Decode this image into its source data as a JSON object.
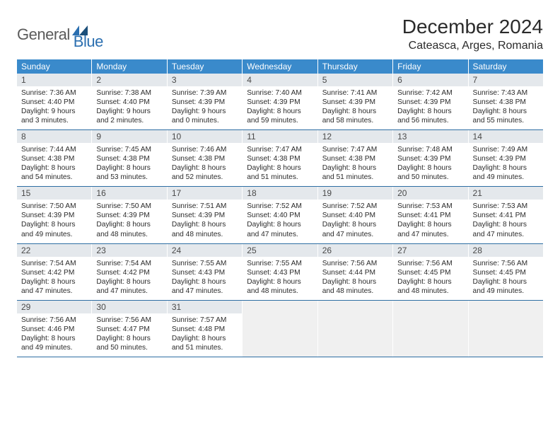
{
  "logo": {
    "general": "General",
    "blue": "Blue"
  },
  "title": "December 2024",
  "location": "Cateasca, Arges, Romania",
  "colors": {
    "header_blue": "#3a8acb",
    "row_divider": "#2e6ea3",
    "daynum_bg": "#e4e8ec",
    "logo_gray": "#5b5b5b",
    "logo_blue": "#2b6fb0"
  },
  "dow": [
    "Sunday",
    "Monday",
    "Tuesday",
    "Wednesday",
    "Thursday",
    "Friday",
    "Saturday"
  ],
  "weeks": [
    [
      {
        "n": "1",
        "sr": "Sunrise: 7:36 AM",
        "ss": "Sunset: 4:40 PM",
        "dl": "Daylight: 9 hours and 3 minutes."
      },
      {
        "n": "2",
        "sr": "Sunrise: 7:38 AM",
        "ss": "Sunset: 4:40 PM",
        "dl": "Daylight: 9 hours and 2 minutes."
      },
      {
        "n": "3",
        "sr": "Sunrise: 7:39 AM",
        "ss": "Sunset: 4:39 PM",
        "dl": "Daylight: 9 hours and 0 minutes."
      },
      {
        "n": "4",
        "sr": "Sunrise: 7:40 AM",
        "ss": "Sunset: 4:39 PM",
        "dl": "Daylight: 8 hours and 59 minutes."
      },
      {
        "n": "5",
        "sr": "Sunrise: 7:41 AM",
        "ss": "Sunset: 4:39 PM",
        "dl": "Daylight: 8 hours and 58 minutes."
      },
      {
        "n": "6",
        "sr": "Sunrise: 7:42 AM",
        "ss": "Sunset: 4:39 PM",
        "dl": "Daylight: 8 hours and 56 minutes."
      },
      {
        "n": "7",
        "sr": "Sunrise: 7:43 AM",
        "ss": "Sunset: 4:38 PM",
        "dl": "Daylight: 8 hours and 55 minutes."
      }
    ],
    [
      {
        "n": "8",
        "sr": "Sunrise: 7:44 AM",
        "ss": "Sunset: 4:38 PM",
        "dl": "Daylight: 8 hours and 54 minutes."
      },
      {
        "n": "9",
        "sr": "Sunrise: 7:45 AM",
        "ss": "Sunset: 4:38 PM",
        "dl": "Daylight: 8 hours and 53 minutes."
      },
      {
        "n": "10",
        "sr": "Sunrise: 7:46 AM",
        "ss": "Sunset: 4:38 PM",
        "dl": "Daylight: 8 hours and 52 minutes."
      },
      {
        "n": "11",
        "sr": "Sunrise: 7:47 AM",
        "ss": "Sunset: 4:38 PM",
        "dl": "Daylight: 8 hours and 51 minutes."
      },
      {
        "n": "12",
        "sr": "Sunrise: 7:47 AM",
        "ss": "Sunset: 4:38 PM",
        "dl": "Daylight: 8 hours and 51 minutes."
      },
      {
        "n": "13",
        "sr": "Sunrise: 7:48 AM",
        "ss": "Sunset: 4:39 PM",
        "dl": "Daylight: 8 hours and 50 minutes."
      },
      {
        "n": "14",
        "sr": "Sunrise: 7:49 AM",
        "ss": "Sunset: 4:39 PM",
        "dl": "Daylight: 8 hours and 49 minutes."
      }
    ],
    [
      {
        "n": "15",
        "sr": "Sunrise: 7:50 AM",
        "ss": "Sunset: 4:39 PM",
        "dl": "Daylight: 8 hours and 49 minutes."
      },
      {
        "n": "16",
        "sr": "Sunrise: 7:50 AM",
        "ss": "Sunset: 4:39 PM",
        "dl": "Daylight: 8 hours and 48 minutes."
      },
      {
        "n": "17",
        "sr": "Sunrise: 7:51 AM",
        "ss": "Sunset: 4:39 PM",
        "dl": "Daylight: 8 hours and 48 minutes."
      },
      {
        "n": "18",
        "sr": "Sunrise: 7:52 AM",
        "ss": "Sunset: 4:40 PM",
        "dl": "Daylight: 8 hours and 47 minutes."
      },
      {
        "n": "19",
        "sr": "Sunrise: 7:52 AM",
        "ss": "Sunset: 4:40 PM",
        "dl": "Daylight: 8 hours and 47 minutes."
      },
      {
        "n": "20",
        "sr": "Sunrise: 7:53 AM",
        "ss": "Sunset: 4:41 PM",
        "dl": "Daylight: 8 hours and 47 minutes."
      },
      {
        "n": "21",
        "sr": "Sunrise: 7:53 AM",
        "ss": "Sunset: 4:41 PM",
        "dl": "Daylight: 8 hours and 47 minutes."
      }
    ],
    [
      {
        "n": "22",
        "sr": "Sunrise: 7:54 AM",
        "ss": "Sunset: 4:42 PM",
        "dl": "Daylight: 8 hours and 47 minutes."
      },
      {
        "n": "23",
        "sr": "Sunrise: 7:54 AM",
        "ss": "Sunset: 4:42 PM",
        "dl": "Daylight: 8 hours and 47 minutes."
      },
      {
        "n": "24",
        "sr": "Sunrise: 7:55 AM",
        "ss": "Sunset: 4:43 PM",
        "dl": "Daylight: 8 hours and 47 minutes."
      },
      {
        "n": "25",
        "sr": "Sunrise: 7:55 AM",
        "ss": "Sunset: 4:43 PM",
        "dl": "Daylight: 8 hours and 48 minutes."
      },
      {
        "n": "26",
        "sr": "Sunrise: 7:56 AM",
        "ss": "Sunset: 4:44 PM",
        "dl": "Daylight: 8 hours and 48 minutes."
      },
      {
        "n": "27",
        "sr": "Sunrise: 7:56 AM",
        "ss": "Sunset: 4:45 PM",
        "dl": "Daylight: 8 hours and 48 minutes."
      },
      {
        "n": "28",
        "sr": "Sunrise: 7:56 AM",
        "ss": "Sunset: 4:45 PM",
        "dl": "Daylight: 8 hours and 49 minutes."
      }
    ],
    [
      {
        "n": "29",
        "sr": "Sunrise: 7:56 AM",
        "ss": "Sunset: 4:46 PM",
        "dl": "Daylight: 8 hours and 49 minutes."
      },
      {
        "n": "30",
        "sr": "Sunrise: 7:56 AM",
        "ss": "Sunset: 4:47 PM",
        "dl": "Daylight: 8 hours and 50 minutes."
      },
      {
        "n": "31",
        "sr": "Sunrise: 7:57 AM",
        "ss": "Sunset: 4:48 PM",
        "dl": "Daylight: 8 hours and 51 minutes."
      },
      null,
      null,
      null,
      null
    ]
  ]
}
